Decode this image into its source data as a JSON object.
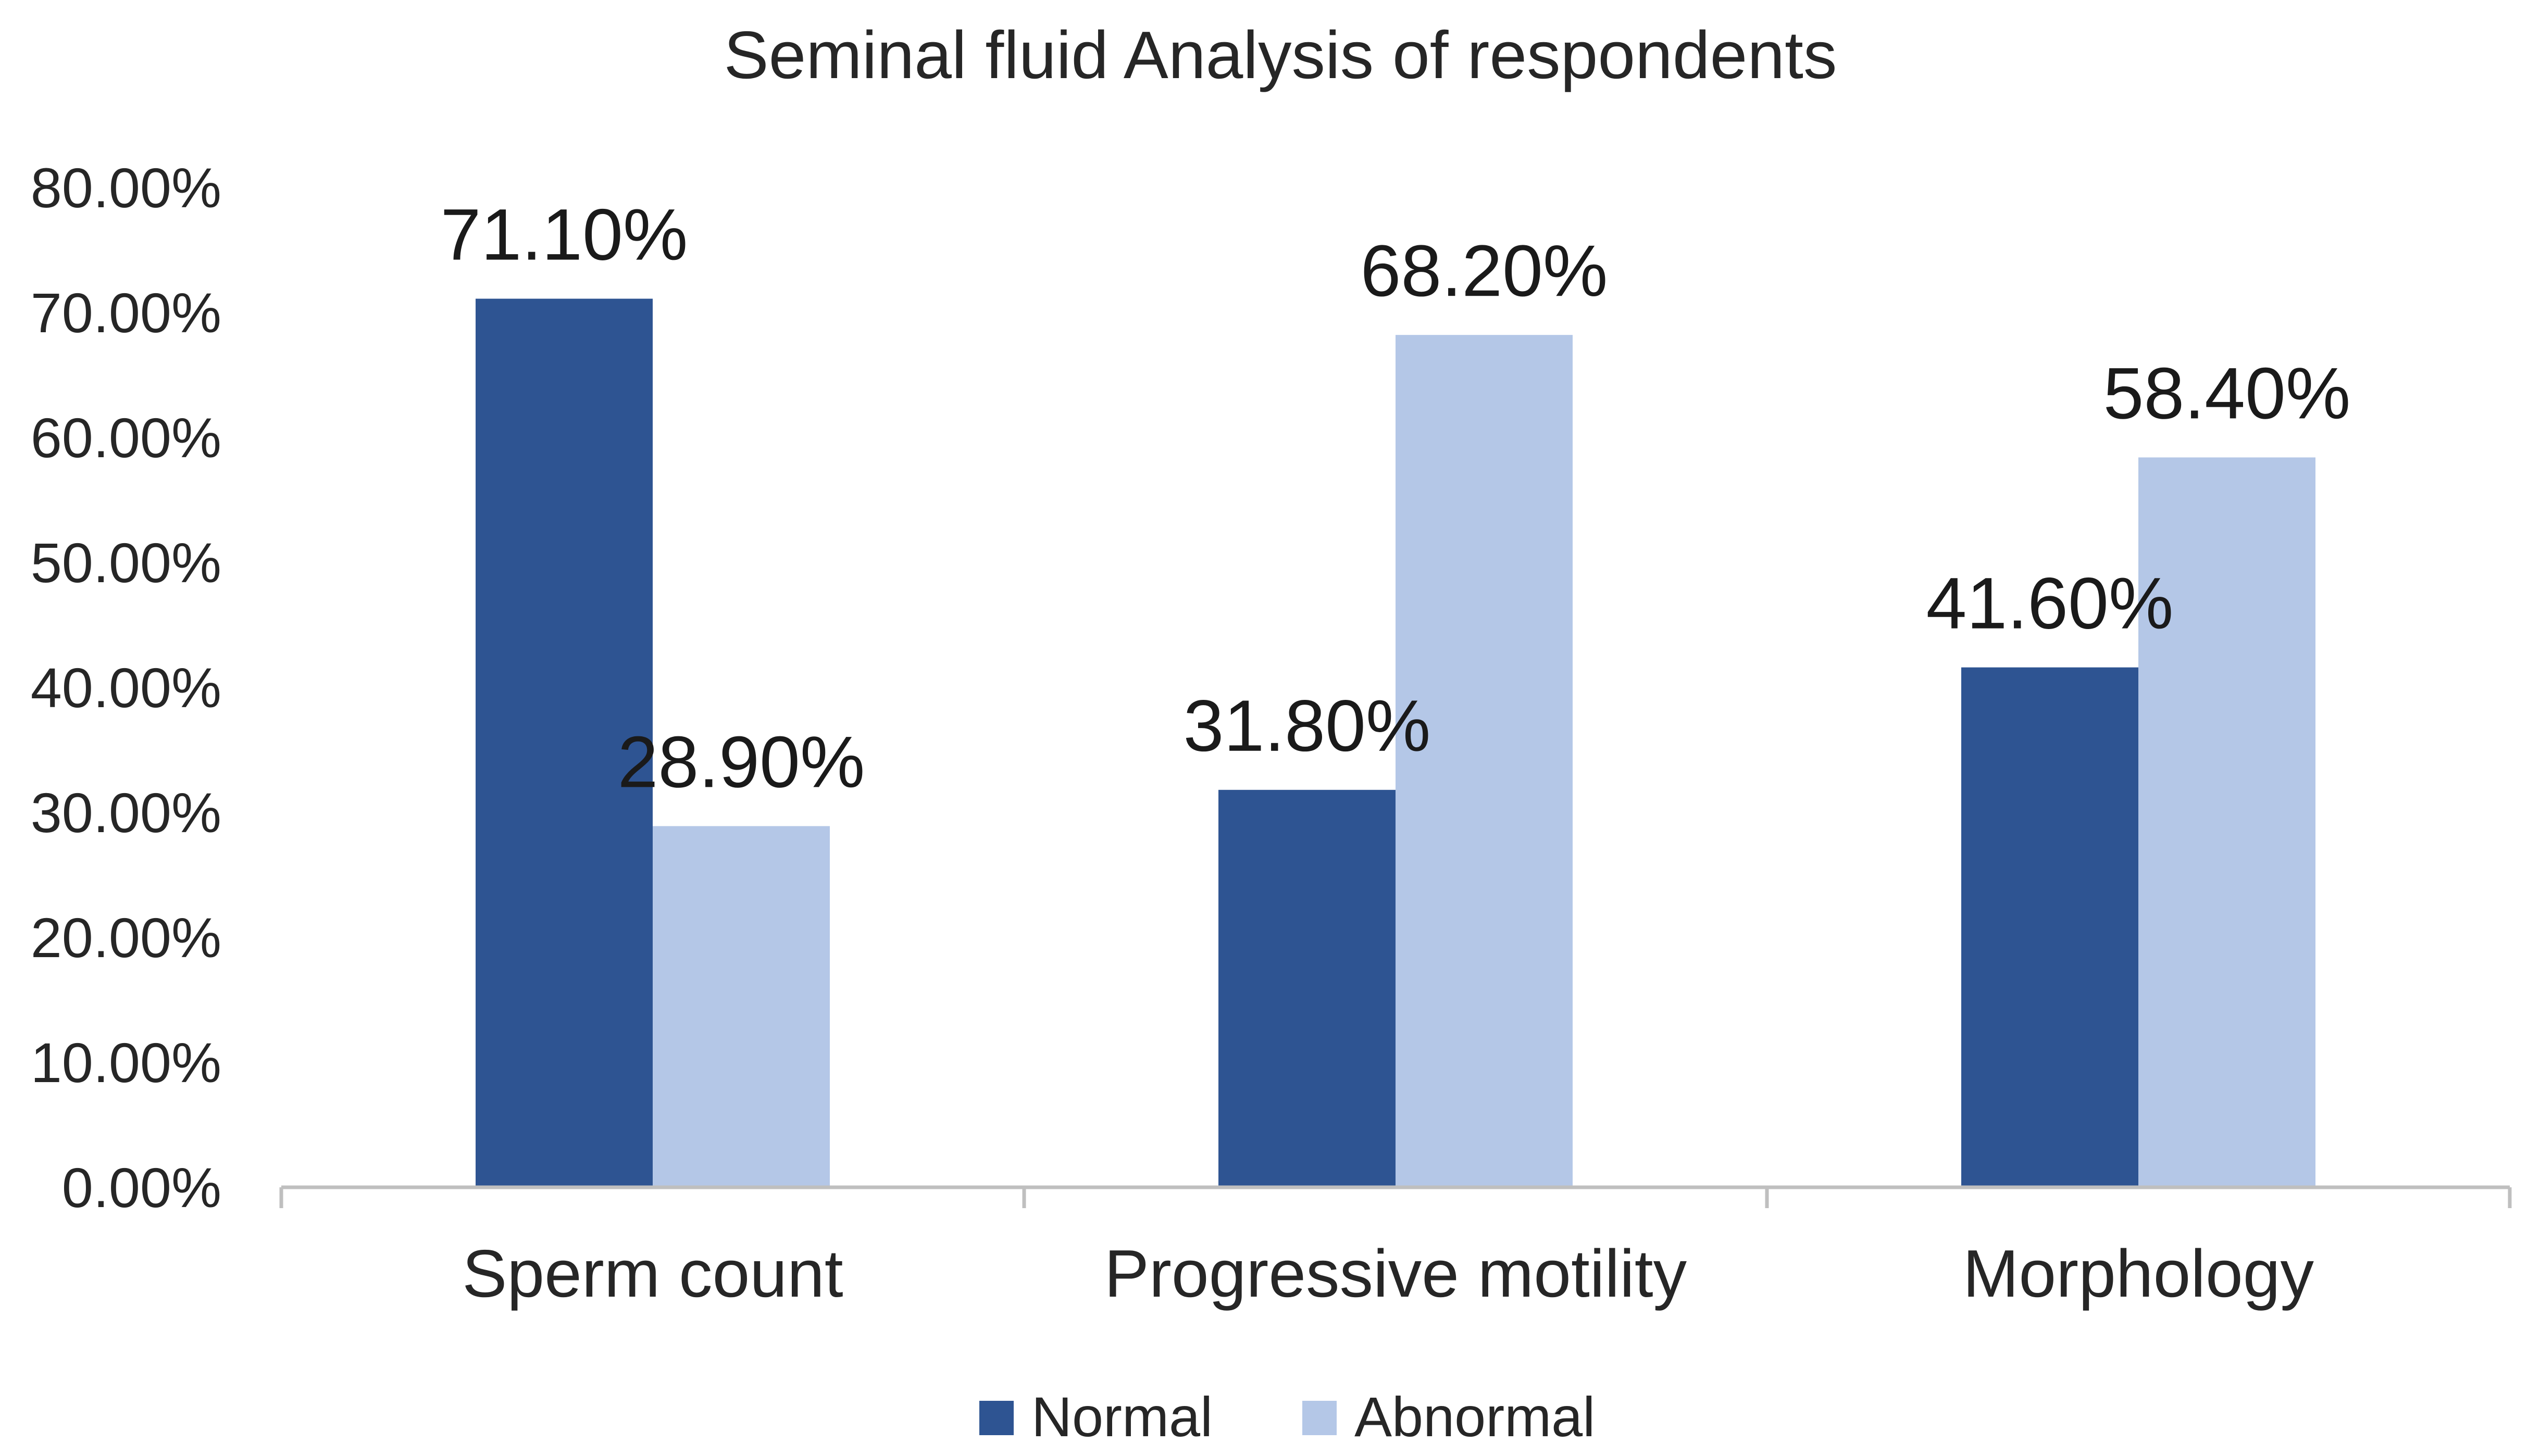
{
  "chart_data": {
    "type": "bar",
    "title": "Seminal fluid Analysis of respondents",
    "categories": [
      "Sperm count",
      "Progressive motility",
      "Morphology"
    ],
    "series": [
      {
        "name": "Normal",
        "color": "#2E5492",
        "values": [
          71.1,
          31.8,
          41.6
        ],
        "labels": [
          "71.10%",
          "31.80%",
          "41.60%"
        ]
      },
      {
        "name": "Abnormal",
        "color": "#B4C7E7",
        "values": [
          28.9,
          68.2,
          58.4
        ],
        "labels": [
          "28.90%",
          "68.20%",
          "58.40%"
        ]
      }
    ],
    "ylim": [
      0,
      80
    ],
    "yticks": [
      0,
      10,
      20,
      30,
      40,
      50,
      60,
      70,
      80
    ],
    "ytick_labels": [
      "0.00%",
      "10.00%",
      "20.00%",
      "30.00%",
      "40.00%",
      "50.00%",
      "60.00%",
      "70.00%",
      "80.00%"
    ],
    "xlabel": "",
    "ylabel": "",
    "grid": false,
    "legend_position": "bottom",
    "axis_color": "#BFBFBF"
  }
}
